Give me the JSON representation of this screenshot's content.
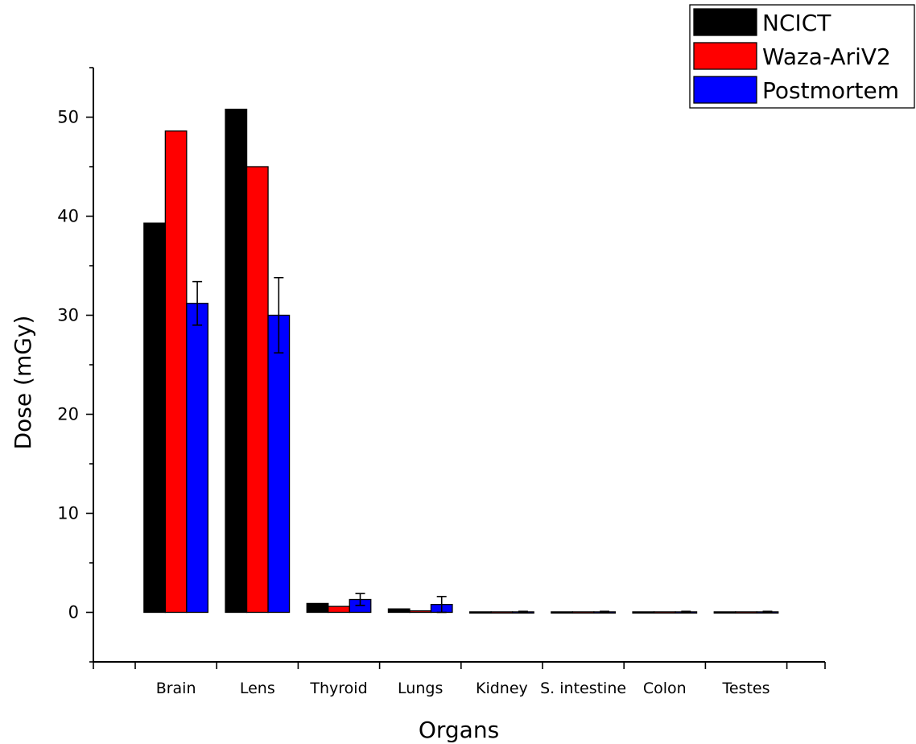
{
  "chart_data": {
    "type": "bar",
    "xlabel": "Organs",
    "ylabel": "Dose (mGy)",
    "ylim": [
      -5,
      55
    ],
    "yticks": [
      0,
      10,
      20,
      30,
      40,
      50
    ],
    "yticks_labels": [
      "0",
      "10",
      "20",
      "30",
      "40",
      "50"
    ],
    "grid": false,
    "legend_position": "top-right",
    "categories": [
      "Brain",
      "Lens",
      "Thyroid",
      "Lungs",
      "Kidney",
      "S. intestine",
      "Colon",
      "Testes"
    ],
    "series": [
      {
        "name": "NCICT",
        "color": "#000000",
        "values": [
          39.3,
          50.8,
          0.9,
          0.35,
          0.05,
          0.05,
          0.05,
          0.05
        ]
      },
      {
        "name": "Waza-AriV2",
        "color": "#ff0000",
        "values": [
          48.6,
          45.0,
          0.6,
          0.15,
          0.05,
          0.05,
          0.05,
          0.05
        ]
      },
      {
        "name": "Postmortem",
        "color": "#0000ff",
        "values": [
          31.2,
          30.0,
          1.3,
          0.8,
          0.05,
          0.05,
          0.05,
          0.05
        ],
        "errors": [
          2.2,
          3.8,
          0.6,
          0.8,
          0.05,
          0.05,
          0.05,
          0.05
        ]
      }
    ]
  }
}
